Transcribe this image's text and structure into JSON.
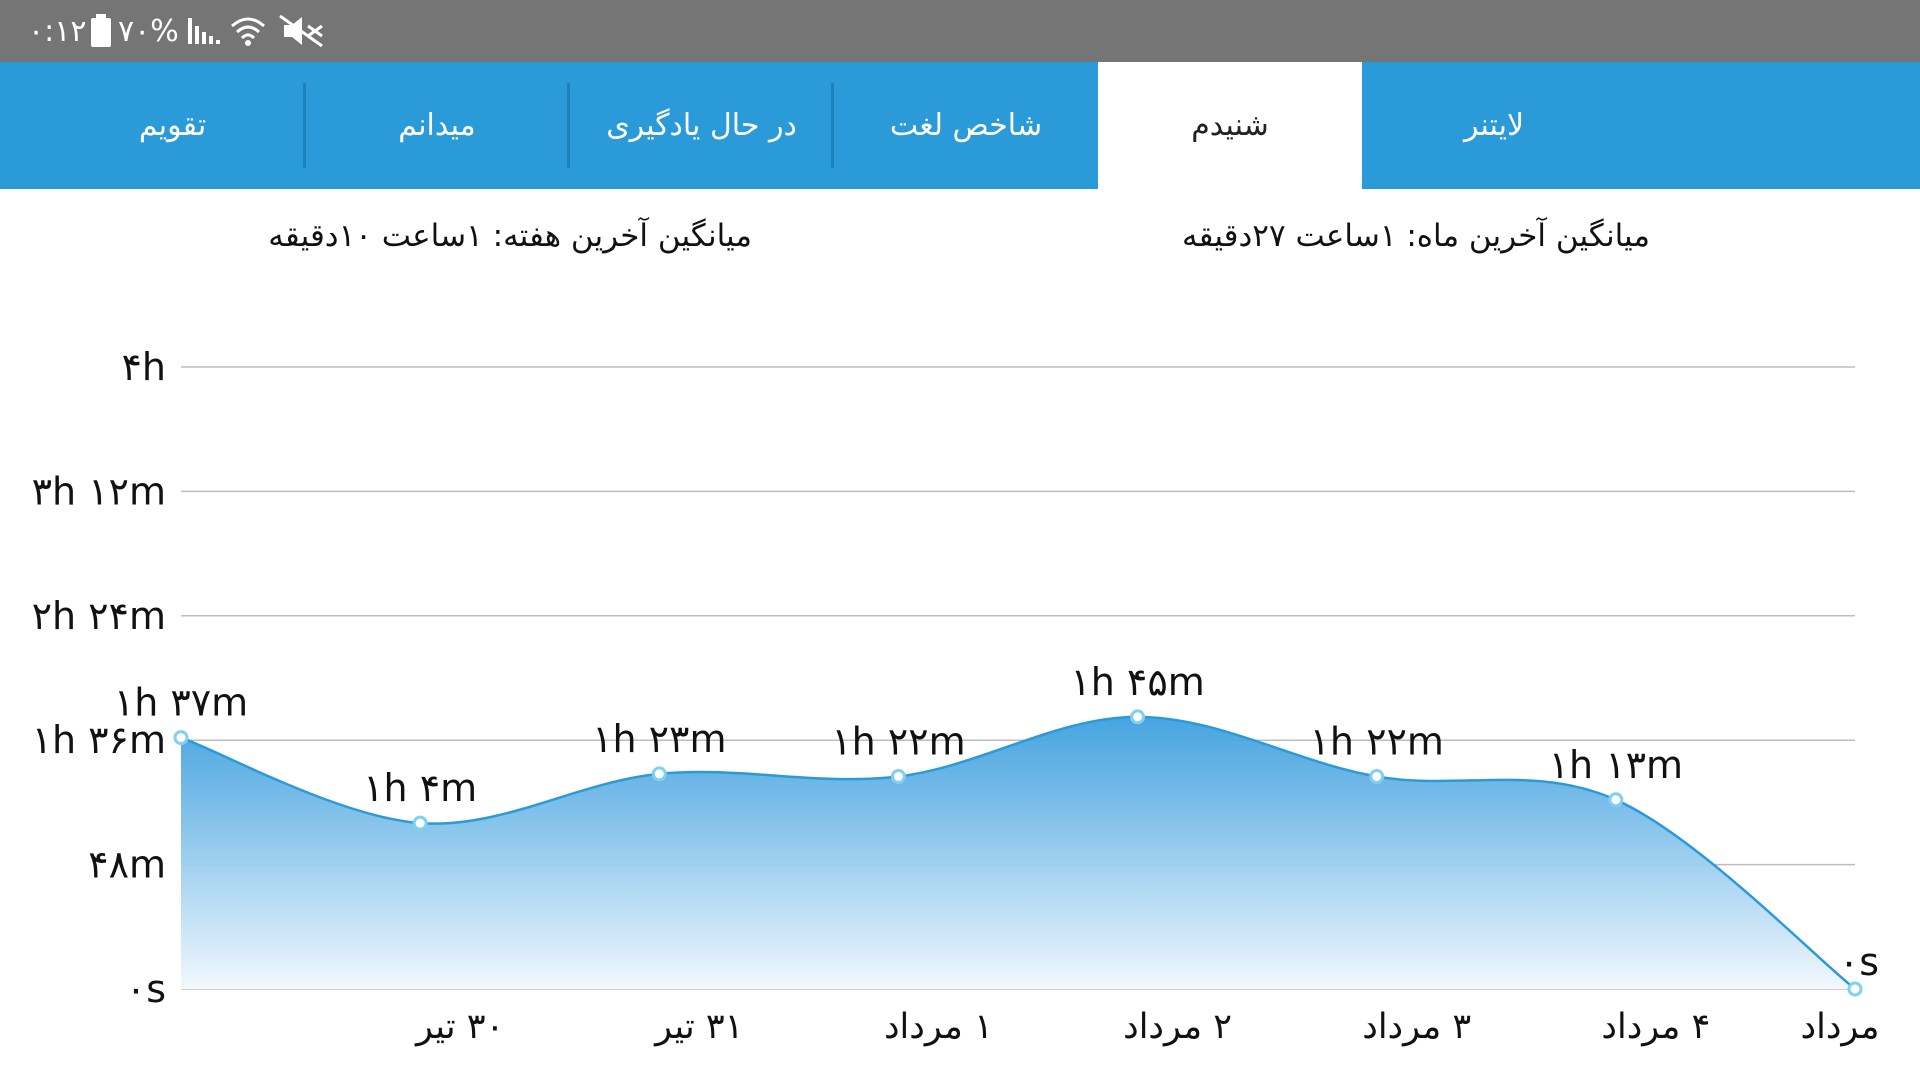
{
  "status_bar": {
    "time": "۰:۱۲",
    "battery": "۷۰%",
    "icons": [
      "battery-icon",
      "signal-icon",
      "wifi-icon",
      "mute-icon"
    ]
  },
  "tabs": [
    "لایتنر",
    "شنیدم",
    "شاخص لغت",
    "در حال یادگیری",
    "میدانم",
    "تقویم"
  ],
  "active_tab": "شنیدم",
  "averages": {
    "month": "میانگین آخرین ماه: ۱ساعت  ۲۷دقیقه",
    "week": "میانگین آخرین هفته: ۱ساعت  ۱۰دقیقه"
  },
  "chart_data": {
    "type": "area",
    "y_ticks": [
      "۰s",
      "۴۸m",
      "۱h ۳۶m",
      "۲h ۲۴m",
      "۳h ۱۲m",
      "۴h"
    ],
    "ylim_minutes": [
      0,
      240
    ],
    "categories": [
      "",
      "۳۰ تیر",
      "۳۱ تیر",
      "۱ مرداد",
      "۲ مرداد",
      "۳ مرداد",
      "۴ مرداد",
      "مرداد"
    ],
    "values_minutes": [
      97,
      64,
      83,
      82,
      105,
      82,
      73,
      0
    ],
    "value_labels": [
      "۱h ۳۷m",
      "۱h ۴m",
      "۱h ۲۳m",
      "۱h ۲۲m",
      "۱h ۴۵m",
      "۱h ۲۲m",
      "۱h ۱۳m",
      "۰s"
    ],
    "grid": true,
    "line_color": "#2b9ad9",
    "fill_top_color": "#3d9fdf",
    "fill_bottom_color": "#f2f8fd"
  },
  "colors": {
    "status_bar": "#757575",
    "tab_bar": "#2b9ad9",
    "active_tab": "#ffffff"
  }
}
